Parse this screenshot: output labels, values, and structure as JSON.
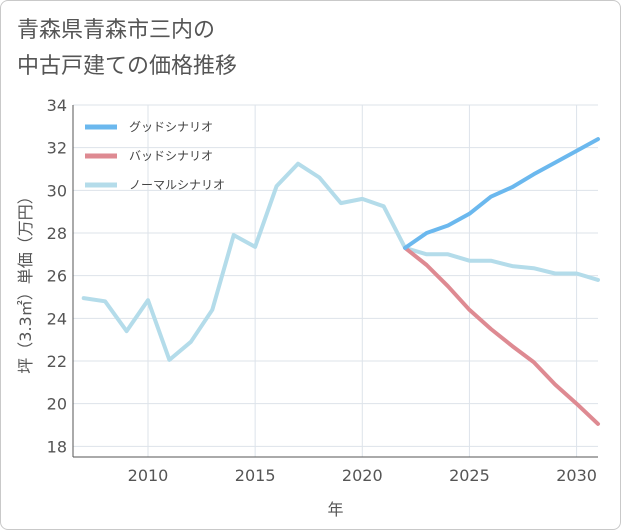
{
  "chart_data": {
    "type": "line",
    "title_line1": "青森県青森市三内の",
    "title_line2": "中古戸建ての価格推移",
    "xlabel": "年",
    "ylabel": "坪（3.3㎡）単価（万円）",
    "xlim": [
      2006.5,
      2031
    ],
    "ylim": [
      17.5,
      34
    ],
    "x_ticks": [
      2010,
      2015,
      2020,
      2025,
      2030
    ],
    "y_ticks": [
      18,
      20,
      22,
      24,
      26,
      28,
      30,
      32,
      34
    ],
    "grid": true,
    "legend_position": "top-left",
    "series": [
      {
        "name": "グッドシナリオ",
        "color": "#6bb8ee",
        "x": [
          2022,
          2023,
          2024,
          2025,
          2026,
          2027,
          2028,
          2029,
          2030,
          2031
        ],
        "values": [
          27.3,
          28.0,
          28.35,
          28.9,
          29.7,
          30.15,
          30.75,
          31.3,
          31.85,
          32.4
        ]
      },
      {
        "name": "バッドシナリオ",
        "color": "#de8a92",
        "x": [
          2022,
          2023,
          2024,
          2025,
          2026,
          2027,
          2028,
          2029,
          2030,
          2031
        ],
        "values": [
          27.3,
          26.5,
          25.5,
          24.4,
          23.5,
          22.7,
          21.95,
          20.9,
          20.0,
          19.05
        ]
      },
      {
        "name": "ノーマルシナリオ",
        "color": "#b4dcea",
        "x": [
          2007,
          2008,
          2009,
          2010,
          2011,
          2012,
          2013,
          2014,
          2015,
          2016,
          2017,
          2018,
          2019,
          2020,
          2021,
          2022,
          2023,
          2024,
          2025,
          2026,
          2027,
          2028,
          2029,
          2030,
          2031
        ],
        "values": [
          24.95,
          24.8,
          23.4,
          24.85,
          22.05,
          22.9,
          24.4,
          27.9,
          27.35,
          30.2,
          31.25,
          30.6,
          29.4,
          29.6,
          29.25,
          27.3,
          27.0,
          27.0,
          26.7,
          26.7,
          26.45,
          26.35,
          26.1,
          26.1,
          25.8
        ]
      }
    ]
  }
}
